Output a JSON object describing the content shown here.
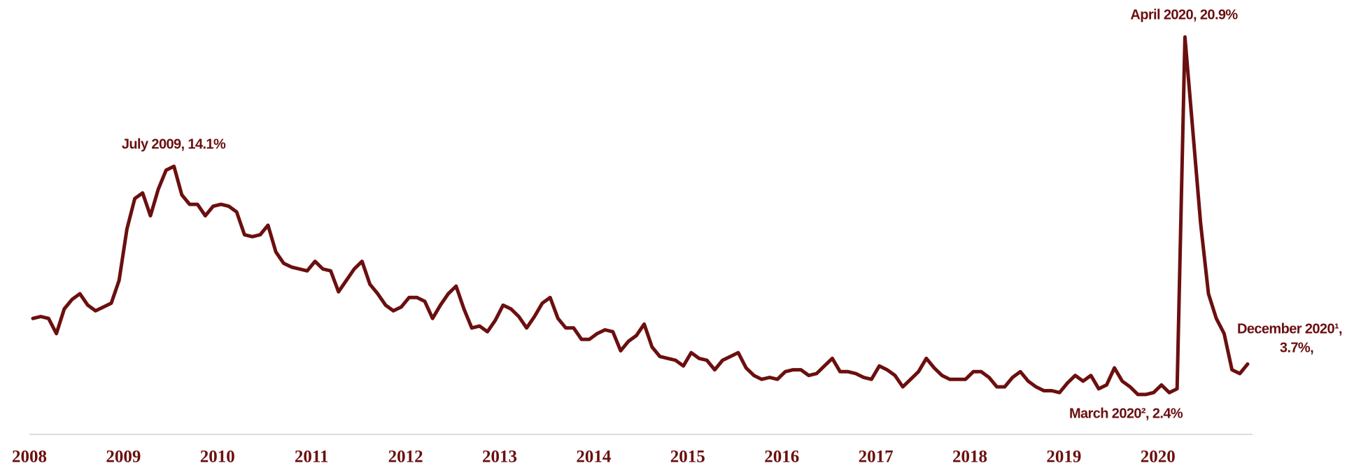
{
  "chart_data": {
    "type": "line",
    "categories": [
      "2008",
      null,
      null,
      null,
      null,
      null,
      null,
      null,
      null,
      null,
      null,
      null,
      "2009",
      null,
      null,
      null,
      null,
      null,
      null,
      null,
      null,
      null,
      null,
      null,
      "2010",
      null,
      null,
      null,
      null,
      null,
      null,
      null,
      null,
      null,
      null,
      null,
      "2011",
      null,
      null,
      null,
      null,
      null,
      null,
      null,
      null,
      null,
      null,
      null,
      "2012",
      null,
      null,
      null,
      null,
      null,
      null,
      null,
      null,
      null,
      null,
      null,
      "2013",
      null,
      null,
      null,
      null,
      null,
      null,
      null,
      null,
      null,
      null,
      null,
      "2014",
      null,
      null,
      null,
      null,
      null,
      null,
      null,
      null,
      null,
      null,
      null,
      "2015",
      null,
      null,
      null,
      null,
      null,
      null,
      null,
      null,
      null,
      null,
      null,
      "2016",
      null,
      null,
      null,
      null,
      null,
      null,
      null,
      null,
      null,
      null,
      null,
      "2017",
      null,
      null,
      null,
      null,
      null,
      null,
      null,
      null,
      null,
      null,
      null,
      "2018",
      null,
      null,
      null,
      null,
      null,
      null,
      null,
      null,
      null,
      null,
      null,
      "2019",
      null,
      null,
      null,
      null,
      null,
      null,
      null,
      null,
      null,
      null,
      null,
      "2020",
      null,
      null,
      null,
      null,
      null,
      null,
      null,
      null,
      null,
      null,
      null
    ],
    "values": [
      6.1,
      6.2,
      6.1,
      5.3,
      6.6,
      7.1,
      7.4,
      6.8,
      6.5,
      6.7,
      6.9,
      8.1,
      10.8,
      12.4,
      12.7,
      11.5,
      12.9,
      13.9,
      14.1,
      12.6,
      12.1,
      12.1,
      11.5,
      12.0,
      12.1,
      12.0,
      11.7,
      10.5,
      10.4,
      10.5,
      11.0,
      9.6,
      9.0,
      8.8,
      8.7,
      8.6,
      9.1,
      8.7,
      8.6,
      7.5,
      8.1,
      8.7,
      9.1,
      7.9,
      7.4,
      6.8,
      6.5,
      6.7,
      7.2,
      7.2,
      7.0,
      6.1,
      6.8,
      7.4,
      7.8,
      6.6,
      5.6,
      5.7,
      5.4,
      6.0,
      6.8,
      6.6,
      6.2,
      5.6,
      6.2,
      6.9,
      7.2,
      6.1,
      5.6,
      5.6,
      5.0,
      5.0,
      5.3,
      5.5,
      5.4,
      4.4,
      4.9,
      5.2,
      5.8,
      4.6,
      4.1,
      4.0,
      3.9,
      3.6,
      4.3,
      4.0,
      3.9,
      3.4,
      3.9,
      4.1,
      4.3,
      3.5,
      3.1,
      2.9,
      3.0,
      2.9,
      3.3,
      3.4,
      3.4,
      3.1,
      3.2,
      3.6,
      4.0,
      3.3,
      3.3,
      3.2,
      3.0,
      2.9,
      3.6,
      3.4,
      3.1,
      2.5,
      2.9,
      3.3,
      4.0,
      3.5,
      3.1,
      2.9,
      2.9,
      2.9,
      3.3,
      3.3,
      3.0,
      2.5,
      2.5,
      3.0,
      3.3,
      2.8,
      2.5,
      2.3,
      2.3,
      2.2,
      2.7,
      3.1,
      2.8,
      3.1,
      2.4,
      2.6,
      3.5,
      2.8,
      2.5,
      2.1,
      2.1,
      2.2,
      2.6,
      2.2,
      2.4,
      20.9,
      16.0,
      11.1,
      7.4,
      6.1,
      5.3,
      3.4,
      3.2,
      3.7
    ],
    "color": "#6b0f0f",
    "ylim": [
      0,
      22
    ],
    "annotations": [
      {
        "lines": [
          "July 2009, 14.1%"
        ]
      },
      {
        "lines": [
          "April 2020, 20.9%"
        ]
      },
      {
        "lines": [
          "March 2020², 2.4%"
        ]
      },
      {
        "lines": [
          "December 2020¹,",
          "3.7%,"
        ]
      }
    ]
  }
}
